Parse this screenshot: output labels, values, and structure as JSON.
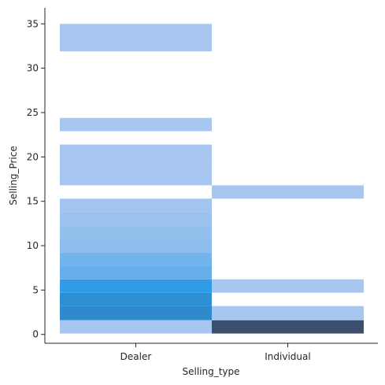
{
  "chart_data": {
    "type": "heatmap",
    "title": "",
    "xlabel": "Selling_type",
    "ylabel": "Selling_Price",
    "categories": [
      "Dealer",
      "Individual"
    ],
    "ylim": [
      -1.0,
      36.8
    ],
    "yticks": [
      0,
      5,
      10,
      15,
      20,
      25,
      30,
      35
    ],
    "grid": false,
    "legend": "none",
    "colormap": {
      "low": "#a8c7f0",
      "mid": "#2b9ae6",
      "high": "#3b4e6b"
    },
    "bins": [
      {
        "category": "Dealer",
        "y0": 0.1,
        "y1": 1.6,
        "count": 18
      },
      {
        "category": "Dealer",
        "y0": 1.6,
        "y1": 3.2,
        "count": 42
      },
      {
        "category": "Dealer",
        "y0": 3.2,
        "y1": 4.7,
        "count": 40
      },
      {
        "category": "Dealer",
        "y0": 4.7,
        "y1": 6.2,
        "count": 36
      },
      {
        "category": "Dealer",
        "y0": 6.2,
        "y1": 7.7,
        "count": 28
      },
      {
        "category": "Dealer",
        "y0": 7.7,
        "y1": 9.2,
        "count": 26
      },
      {
        "category": "Dealer",
        "y0": 9.2,
        "y1": 10.8,
        "count": 22
      },
      {
        "category": "Dealer",
        "y0": 10.8,
        "y1": 12.3,
        "count": 21
      },
      {
        "category": "Dealer",
        "y0": 12.3,
        "y1": 13.8,
        "count": 20
      },
      {
        "category": "Dealer",
        "y0": 13.8,
        "y1": 15.3,
        "count": 19
      },
      {
        "category": "Dealer",
        "y0": 16.8,
        "y1": 18.3,
        "count": 18
      },
      {
        "category": "Dealer",
        "y0": 18.3,
        "y1": 19.9,
        "count": 18
      },
      {
        "category": "Dealer",
        "y0": 19.9,
        "y1": 21.4,
        "count": 18
      },
      {
        "category": "Dealer",
        "y0": 22.9,
        "y1": 24.4,
        "count": 18
      },
      {
        "category": "Dealer",
        "y0": 31.9,
        "y1": 35.0,
        "count": 18
      },
      {
        "category": "Individual",
        "y0": 0.1,
        "y1": 1.6,
        "count": 60
      },
      {
        "category": "Individual",
        "y0": 1.6,
        "y1": 3.2,
        "count": 18
      },
      {
        "category": "Individual",
        "y0": 4.7,
        "y1": 6.2,
        "count": 18
      },
      {
        "category": "Individual",
        "y0": 15.3,
        "y1": 16.8,
        "count": 18
      }
    ]
  }
}
